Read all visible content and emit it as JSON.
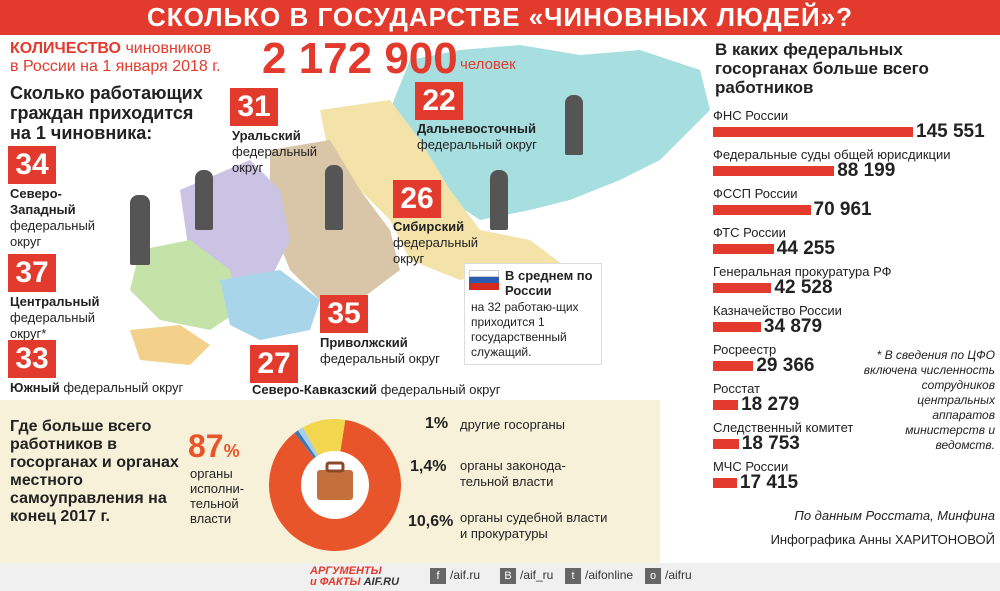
{
  "title": "СКОЛЬКО В ГОСУДАРСТВЕ «ЧИНОВНЫХ ЛЮДЕЙ»?",
  "count": {
    "label_1": "КОЛИЧЕСТВО",
    "label_2": "чиновников",
    "label_3": "в России на 1 января 2018 г.",
    "value": "2 172 900",
    "unit": "человек"
  },
  "map_section": {
    "title": "Сколько работающих граждан приходится на 1 чиновника:",
    "districts": [
      {
        "value": "34",
        "name": "Северо-Западный",
        "suffix": "федеральный округ"
      },
      {
        "value": "37",
        "name": "Центральный",
        "suffix": "федеральный округ*"
      },
      {
        "value": "33",
        "name": "Южный",
        "suffix": "федеральный округ"
      },
      {
        "value": "31",
        "name": "Уральский",
        "suffix": "федеральный округ"
      },
      {
        "value": "22",
        "name": "Дальневосточный",
        "suffix": "федеральный округ"
      },
      {
        "value": "26",
        "name": "Сибирский",
        "suffix": "федеральный округ"
      },
      {
        "value": "35",
        "name": "Приволжский",
        "suffix": "федеральный округ"
      },
      {
        "value": "27",
        "name": "Северо-Кавказский",
        "suffix": "федеральный округ"
      }
    ],
    "average": {
      "title": "В среднем по России",
      "text": "на 32 работаю-щих приходится 1 государственный служащий."
    }
  },
  "federal_bodies": {
    "title": "В каких федеральных госорганах больше всего работников",
    "items": [
      {
        "name": "ФНС России",
        "value": "145 551",
        "num": 145551
      },
      {
        "name": "Федеральные суды общей юрисдикции",
        "value": "88 199",
        "num": 88199
      },
      {
        "name": "ФССП России",
        "value": "70 961",
        "num": 70961
      },
      {
        "name": "ФТС России",
        "value": "44 255",
        "num": 44255
      },
      {
        "name": "Генеральная прокуратура РФ",
        "value": "42 528",
        "num": 42528
      },
      {
        "name": "Казначейство России",
        "value": "34 879",
        "num": 34879
      },
      {
        "name": "Росреестр",
        "value": "29 366",
        "num": 29366
      },
      {
        "name": "Росстат",
        "value": "18 279",
        "num": 18279
      },
      {
        "name": "Следственный комитет",
        "value": "18 753",
        "num": 18753
      },
      {
        "name": "МЧС России",
        "value": "17 415",
        "num": 17415
      }
    ],
    "footnote": "* В сведения по ЦФО включена численность сотрудников центральных аппаратов министерств и ведомств.",
    "source": "По данным Росстата, Минфина",
    "author": "Инфографика Анны ХАРИТОНОВОЙ"
  },
  "distribution": {
    "title": "Где больше всего работников в госорганах и органах местного самоуправления на конец 2017 г.",
    "main_value": "87",
    "main_unit": "%",
    "main_label": "органы исполни-тельной власти",
    "slices": [
      {
        "value": "1%",
        "label": "другие госорганы",
        "num": 1.0
      },
      {
        "value": "1,4%",
        "label": "органы законода-тельной власти",
        "num": 1.4
      },
      {
        "value": "10,6%",
        "label": "органы судебной власти и прокуратуры",
        "num": 10.6
      }
    ],
    "colors": {
      "main": "#e8552a",
      "other": "#3a78b8",
      "legislative": "#a8cfe8",
      "judicial": "#f1d64e"
    }
  },
  "footer": {
    "logo_1": "АРГУМЕНТЫ",
    "logo_2": "и ФАКТЫ",
    "logo_3": "AIF.RU",
    "social": [
      "/aif.ru",
      "/aif_ru",
      "/aifonline",
      "/aifru"
    ]
  }
}
